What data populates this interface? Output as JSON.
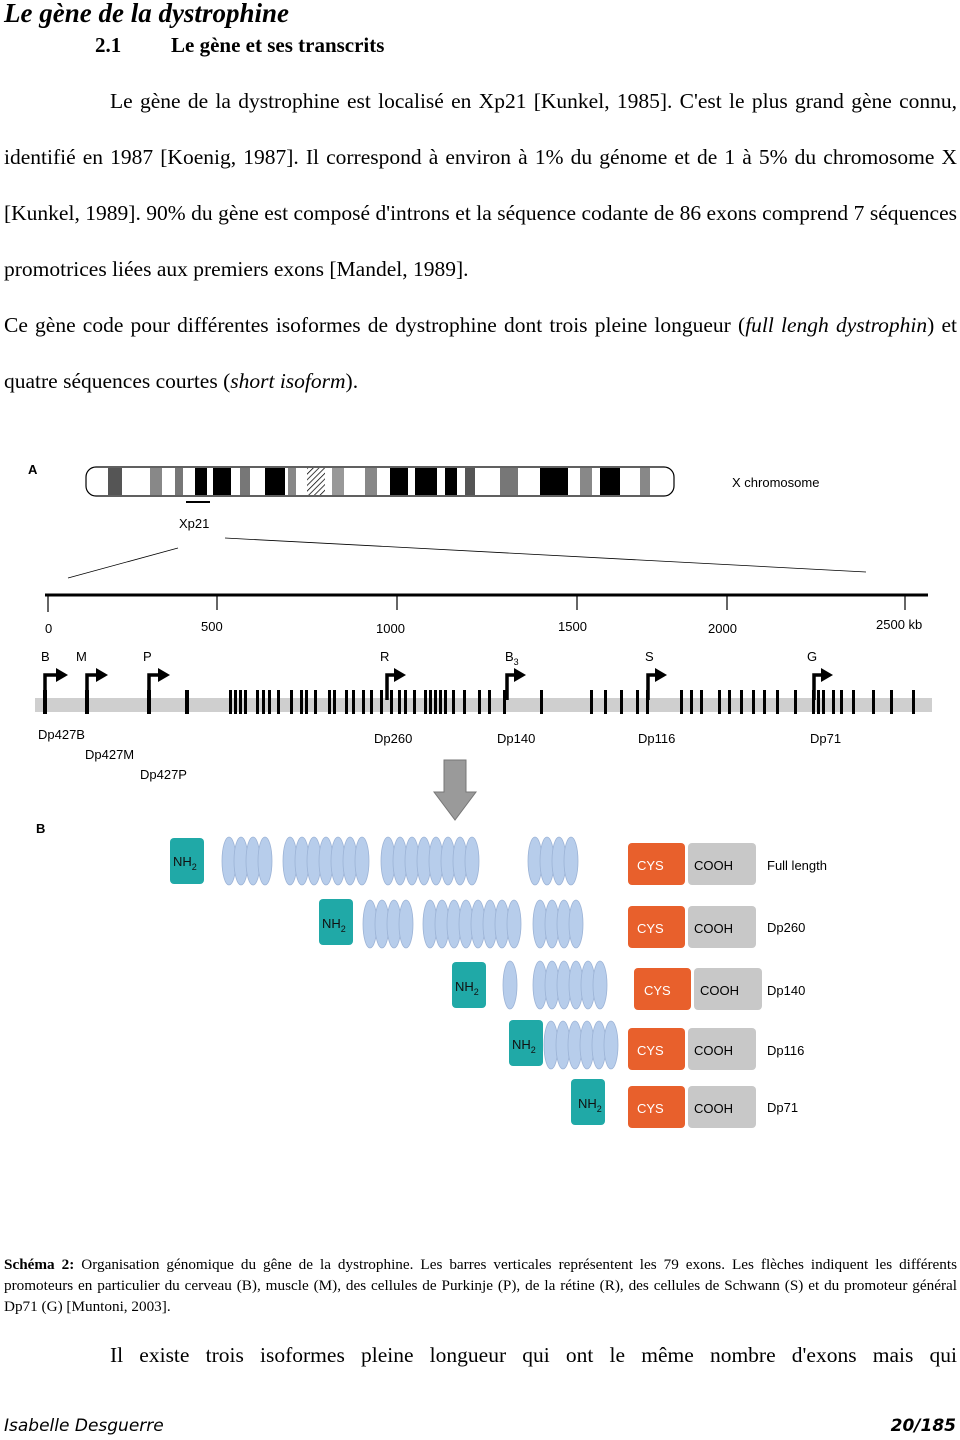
{
  "chapter_title": "Le gène de la dystrophine",
  "section": {
    "number": "2.1",
    "title": "Le gène et ses transcrits"
  },
  "paragraph1": {
    "p1_a": "Le gène de la dystrophine est localisé en Xp21 [Kunkel, 1985]. C'est le plus grand gène connu, identifié en 1987 [Koenig, 1987]. Il correspond à environ à 1% du génome et de 1 à 5% du chromosome X [Kunkel, 1989]. 90% du gène est composé d'introns et la séquence codante de 86 exons comprend 7 séquences promotrices liées aux premiers exons [Mandel, 1989].",
    "p2_a": "Ce gène code pour différentes isoformes de dystrophine dont trois pleine longueur (",
    "p2_i1": "full lengh dystrophin",
    "p2_b": ") et quatre séquences courtes (",
    "p2_i2": "short isoform",
    "p2_c": ")."
  },
  "figure": {
    "panel_a": "A",
    "panel_b": "B",
    "chromosome_label": "X chromosome",
    "locus_label": "Xp21",
    "scale_ticks": [
      "0",
      "500",
      "1000",
      "1500",
      "2000",
      "2500 kb"
    ],
    "promoters": [
      "B",
      "M",
      "P",
      "R",
      "B",
      "S",
      "G"
    ],
    "promoter_b3_sub": "3",
    "transcripts": [
      "Dp427B",
      "Dp427M",
      "Dp427P",
      "Dp260",
      "Dp140",
      "Dp116",
      "Dp71"
    ],
    "isoforms": [
      {
        "nh2": "NH",
        "nh2_sub": "2",
        "cys": "CYS",
        "cooh": "COOH",
        "name": "Full length"
      },
      {
        "nh2": "NH",
        "nh2_sub": "2",
        "cys": "CYS",
        "cooh": "COOH",
        "name": "Dp260"
      },
      {
        "nh2": "NH",
        "nh2_sub": "2",
        "cys": "CYS",
        "cooh": "COOH",
        "name": "Dp140"
      },
      {
        "nh2": "NH",
        "nh2_sub": "2",
        "cys": "CYS",
        "cooh": "COOH",
        "name": "Dp116"
      },
      {
        "nh2": "NH",
        "nh2_sub": "2",
        "cys": "CYS",
        "cooh": "COOH",
        "name": "Dp71"
      }
    ],
    "colors": {
      "nh2": "#20a9a7",
      "cys": "#e8602c",
      "cooh": "#c8c8c8",
      "repeat": "#b7cdeb",
      "arrow": "#9a9a9a"
    }
  },
  "caption": {
    "label": "Schéma 2:",
    "text": " Organisation génomique du gêne de la dystrophine. Les barres verticales représentent les 79 exons. Les flèches indiquent les différents promoteurs en particulier du cerveau (B), muscle (M), des cellules de Purkinje (P), de la rétine (R), des cellules de Schwann (S) et du promoteur général Dp71 (G) [Muntoni, 2003]."
  },
  "paragraph2": "Il existe trois isoformes pleine longueur qui ont le même nombre d'exons mais qui",
  "footer": {
    "author": "Isabelle Desguerre",
    "page": "20/185"
  }
}
